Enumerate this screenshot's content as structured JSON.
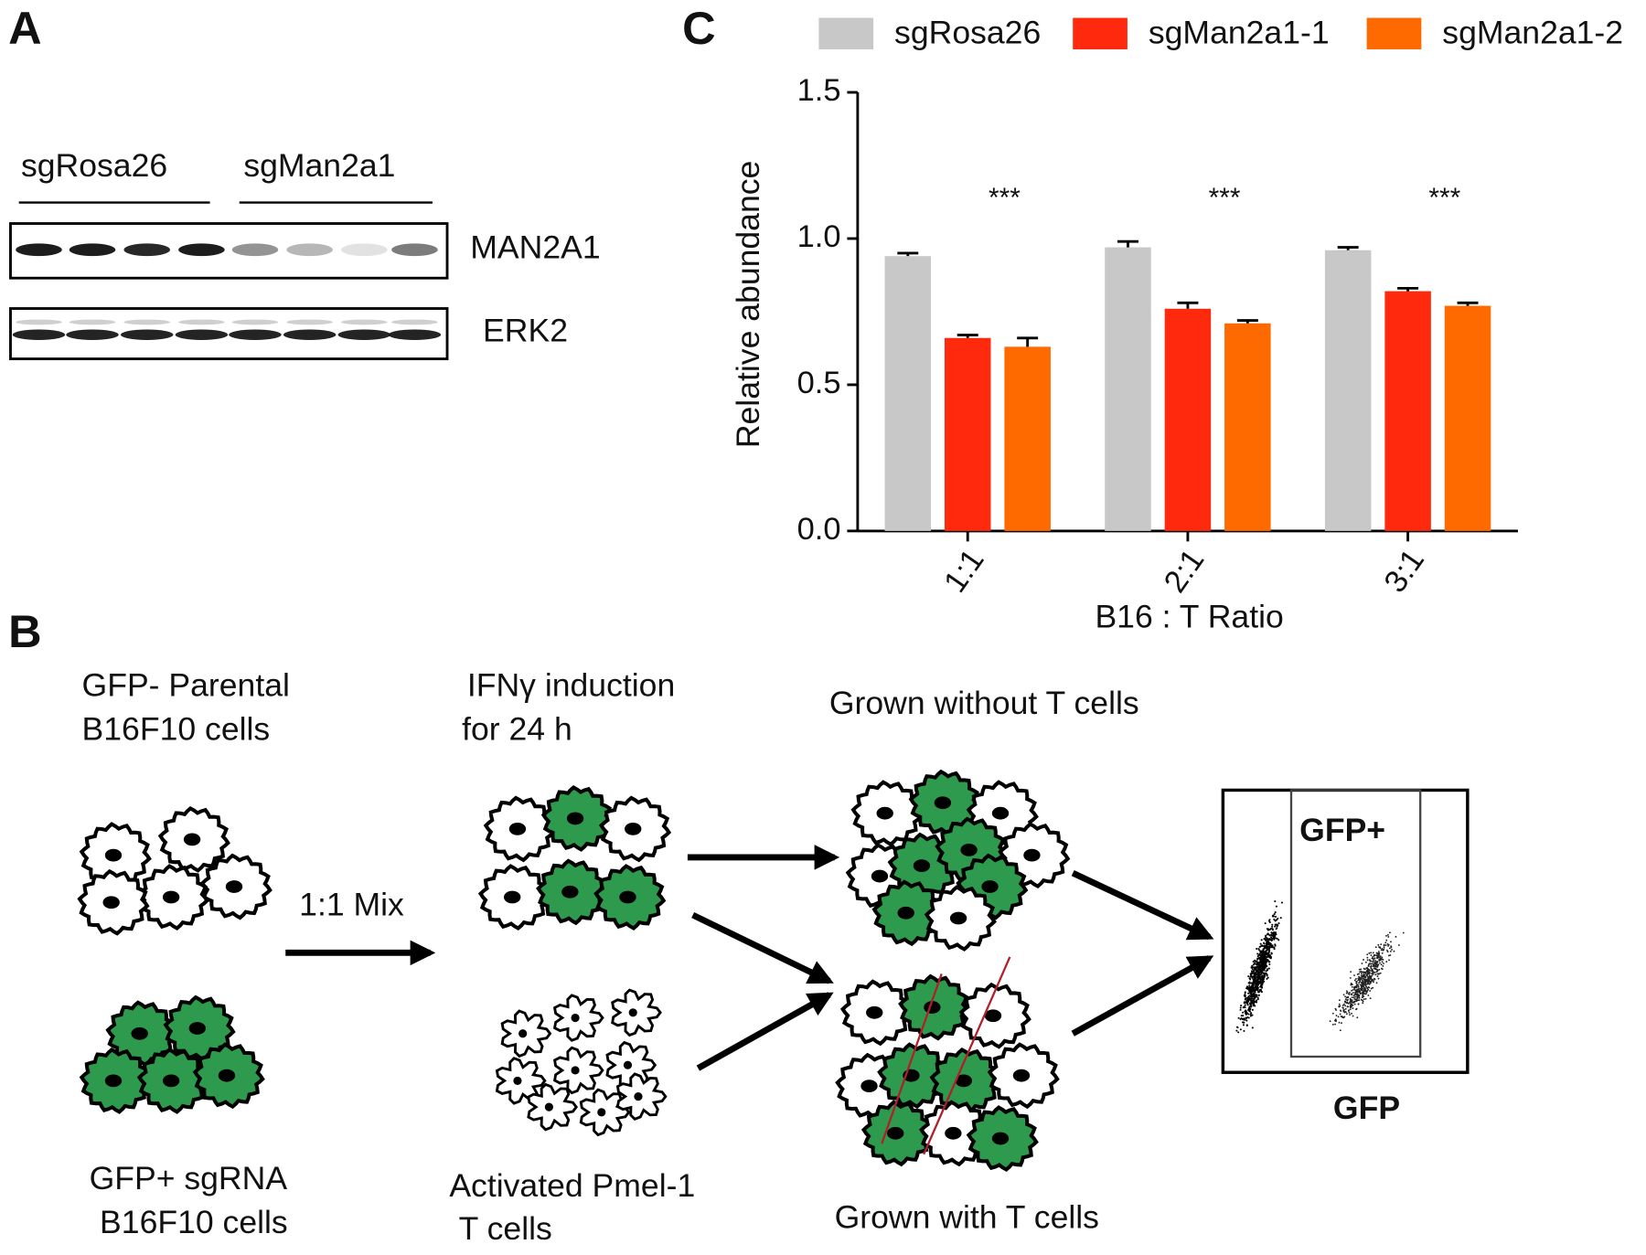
{
  "panel_letters": [
    "A",
    "B",
    "C"
  ],
  "panel_a": {
    "groups": [
      "sgRosa26",
      "sgMan2a1"
    ],
    "blots": [
      "MAN2A1",
      "ERK2"
    ]
  },
  "panel_b": {
    "parental": [
      "GFP- Parental",
      "B16F10 cells"
    ],
    "mix": "1:1 Mix",
    "induction": [
      "IFNγ induction",
      "for 24 h"
    ],
    "without": "Grown without T cells",
    "sgrna": [
      "GFP+ sgRNA",
      "B16F10 cells"
    ],
    "pmel": [
      "Activated Pmel-1",
      "T cells"
    ],
    "with": "Grown with T cells",
    "gate": "GFP+",
    "axis": "GFP"
  },
  "chart_data": {
    "type": "bar",
    "x_label": "B16 : T Ratio",
    "y_label": "Relative abundance",
    "categories": [
      "1:1",
      "2:1",
      "3:1"
    ],
    "series": [
      {
        "name": "sgRosa26",
        "color": "#c8c8c8",
        "values": [
          0.94,
          0.97,
          0.96
        ],
        "errors": [
          0.01,
          0.02,
          0.01
        ]
      },
      {
        "name": "sgMan2a1-1",
        "color": "#ff2a0e",
        "values": [
          0.66,
          0.76,
          0.82
        ],
        "errors": [
          0.01,
          0.02,
          0.01
        ]
      },
      {
        "name": "sgMan2a1-2",
        "color": "#ff6a00",
        "values": [
          0.63,
          0.71,
          0.77
        ],
        "errors": [
          0.03,
          0.01,
          0.01
        ]
      }
    ],
    "ylim": [
      0,
      1.5
    ],
    "yticks": [
      {
        "value": 0,
        "label": "0.0"
      },
      {
        "value": 0.5,
        "label": "0.5"
      },
      {
        "value": 1,
        "label": "1.0"
      },
      {
        "value": 1.5,
        "label": "1.5"
      }
    ],
    "annotations": [
      "***",
      "***",
      "***"
    ],
    "legend": "top"
  }
}
